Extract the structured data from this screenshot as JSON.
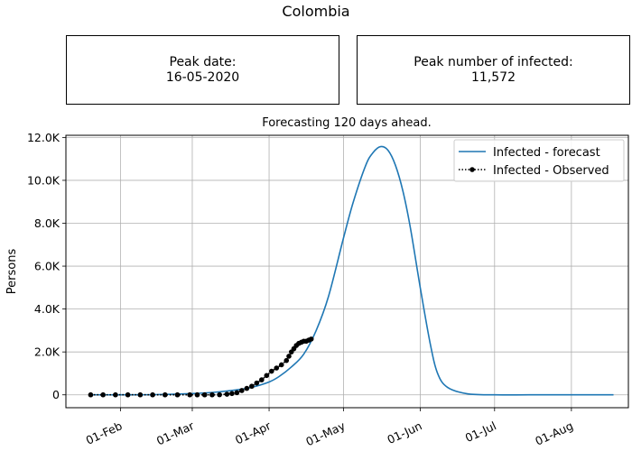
{
  "figure": {
    "title": "Colombia",
    "peak_date_label": "Peak date:",
    "peak_date_value": "16-05-2020",
    "peak_infected_label": "Peak number of infected:",
    "peak_infected_value": "11,572"
  },
  "chart_data": {
    "type": "line",
    "title": "Forecasting 120 days ahead.",
    "xlabel": "",
    "ylabel": "Persons",
    "x_range": [
      "2020-01-10",
      "2020-08-24"
    ],
    "ylim": [
      -600,
      12100
    ],
    "y_ticks": [
      0,
      2000,
      4000,
      6000,
      8000,
      10000,
      12000
    ],
    "y_tick_labels": [
      "0",
      "2.0K",
      "4.0K",
      "6.0K",
      "8.0K",
      "10.0K",
      "12.0K"
    ],
    "x_ticks": [
      "2020-02-01",
      "2020-03-01",
      "2020-04-01",
      "2020-05-01",
      "2020-06-01",
      "2020-07-01",
      "2020-08-01"
    ],
    "x_tick_labels": [
      "01-Feb",
      "01-Mar",
      "01-Apr",
      "01-May",
      "01-Jun",
      "01-Jul",
      "01-Aug"
    ],
    "grid": true,
    "legend_position": "top-right",
    "colors": {
      "forecast": "#1f77b4",
      "observed": "#000000"
    },
    "series": [
      {
        "name": "Infected - forecast",
        "style": "line",
        "x": [
          "2020-01-20",
          "2020-02-01",
          "2020-02-15",
          "2020-03-01",
          "2020-03-10",
          "2020-03-20",
          "2020-03-25",
          "2020-04-01",
          "2020-04-05",
          "2020-04-10",
          "2020-04-15",
          "2020-04-20",
          "2020-04-25",
          "2020-05-01",
          "2020-05-05",
          "2020-05-10",
          "2020-05-13",
          "2020-05-16",
          "2020-05-19",
          "2020-05-22",
          "2020-05-25",
          "2020-05-28",
          "2020-06-01",
          "2020-06-05",
          "2020-06-08",
          "2020-06-12",
          "2020-06-20",
          "2020-07-01",
          "2020-07-15",
          "2020-08-01",
          "2020-08-18"
        ],
        "y": [
          0,
          0,
          10,
          60,
          120,
          250,
          350,
          600,
          850,
          1300,
          1900,
          3000,
          4600,
          7300,
          9000,
          10700,
          11300,
          11572,
          11400,
          10700,
          9500,
          7800,
          5000,
          2400,
          1000,
          350,
          50,
          0,
          0,
          0,
          0
        ]
      },
      {
        "name": "Infected - Observed",
        "style": "dotted-markers",
        "x": [
          "2020-01-20",
          "2020-01-25",
          "2020-01-30",
          "2020-02-04",
          "2020-02-09",
          "2020-02-14",
          "2020-02-19",
          "2020-02-24",
          "2020-02-29",
          "2020-03-03",
          "2020-03-06",
          "2020-03-09",
          "2020-03-12",
          "2020-03-15",
          "2020-03-17",
          "2020-03-19",
          "2020-03-21",
          "2020-03-23",
          "2020-03-25",
          "2020-03-27",
          "2020-03-29",
          "2020-03-31",
          "2020-04-02",
          "2020-04-04",
          "2020-04-06",
          "2020-04-08",
          "2020-04-09",
          "2020-04-10",
          "2020-04-11",
          "2020-04-12",
          "2020-04-13",
          "2020-04-14",
          "2020-04-15",
          "2020-04-16",
          "2020-04-17",
          "2020-04-18"
        ],
        "y": [
          0,
          0,
          0,
          0,
          0,
          0,
          0,
          0,
          0,
          0,
          0,
          0,
          5,
          30,
          60,
          100,
          200,
          300,
          400,
          550,
          700,
          900,
          1100,
          1250,
          1400,
          1600,
          1800,
          2000,
          2150,
          2300,
          2400,
          2450,
          2500,
          2500,
          2550,
          2600
        ]
      }
    ]
  }
}
